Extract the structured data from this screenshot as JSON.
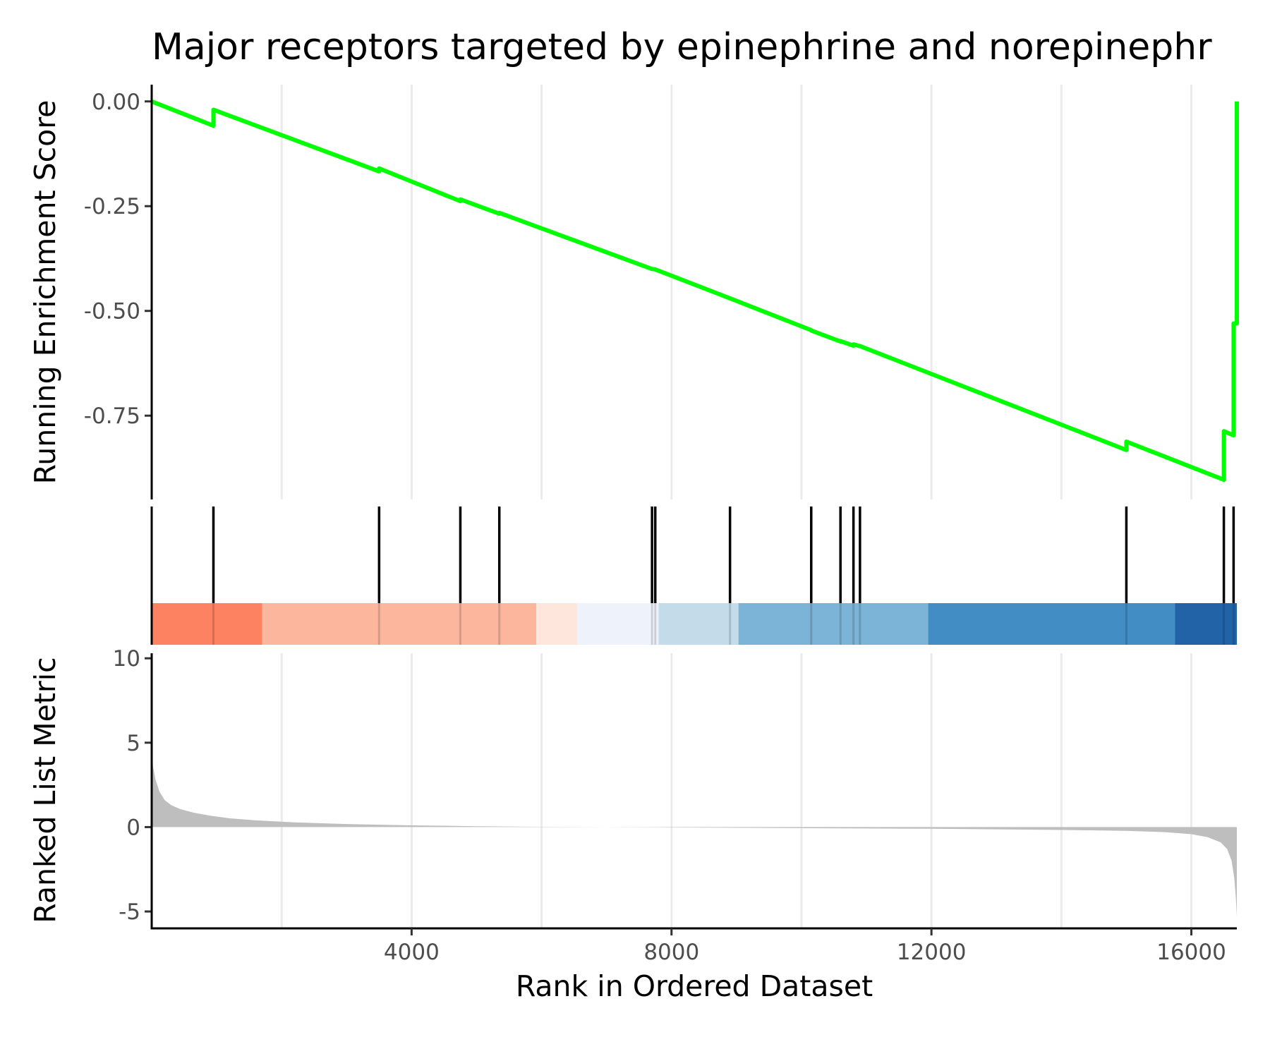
{
  "chart_data": {
    "type": "line",
    "title": "Major receptors targeted by epinephrine and norepinephr",
    "xlabel": "Rank in Ordered Dataset",
    "xlim": [
      0,
      16700
    ],
    "x_ticks": [
      {
        "value": 4000,
        "label": "4000"
      },
      {
        "value": 8000,
        "label": "8000"
      },
      {
        "value": 12000,
        "label": "12000"
      },
      {
        "value": 16000,
        "label": "16000"
      }
    ],
    "x_gridlines": [
      2000,
      4000,
      6000,
      8000,
      10000,
      12000,
      14000,
      16000
    ],
    "grid": true,
    "enrichment": {
      "ylabel": "Running Enrichment Score",
      "ylim": [
        -0.95,
        0.04
      ],
      "color": "#00ff00",
      "y_ticks": [
        {
          "value": 0,
          "label": "0.00"
        },
        {
          "value": -0.25,
          "label": "-0.25"
        },
        {
          "value": -0.5,
          "label": "-0.50"
        },
        {
          "value": -0.75,
          "label": "-0.75"
        }
      ],
      "points": [
        [
          0,
          0
        ],
        [
          950,
          -0.058
        ],
        [
          950,
          -0.02
        ],
        [
          3500,
          -0.167
        ],
        [
          3500,
          -0.16
        ],
        [
          4750,
          -0.238
        ],
        [
          4750,
          -0.234
        ],
        [
          5350,
          -0.268
        ],
        [
          5350,
          -0.266
        ],
        [
          7700,
          -0.4
        ],
        [
          7750,
          -0.401
        ],
        [
          8900,
          -0.47
        ],
        [
          10150,
          -0.546
        ],
        [
          10150,
          -0.547
        ],
        [
          10600,
          -0.573
        ],
        [
          10600,
          -0.572
        ],
        [
          10800,
          -0.583
        ],
        [
          10800,
          -0.58
        ],
        [
          10900,
          -0.584
        ],
        [
          15000,
          -0.832
        ],
        [
          15000,
          -0.812
        ],
        [
          16500,
          -0.903
        ],
        [
          16500,
          -0.787
        ],
        [
          16650,
          -0.797
        ],
        [
          16650,
          -0.53
        ],
        [
          16700,
          -0.53
        ],
        [
          16700,
          0
        ]
      ]
    },
    "hits": {
      "positions": [
        950,
        3500,
        4750,
        5350,
        7700,
        7750,
        8900,
        10150,
        10600,
        10800,
        10900,
        15000,
        16500,
        16650
      ],
      "color": "#000000"
    },
    "color_band": {
      "segments": [
        {
          "start": 0,
          "end": 1700,
          "color": "#fc8262"
        },
        {
          "start": 1700,
          "end": 5920,
          "color": "#fbb69d"
        },
        {
          "start": 5920,
          "end": 6550,
          "color": "#fee6dc"
        },
        {
          "start": 6550,
          "end": 7800,
          "color": "#eef2fb"
        },
        {
          "start": 7800,
          "end": 9030,
          "color": "#c4dbea"
        },
        {
          "start": 9030,
          "end": 11950,
          "color": "#7bb4d7"
        },
        {
          "start": 11950,
          "end": 15750,
          "color": "#428dc3"
        },
        {
          "start": 15750,
          "end": 16700,
          "color": "#2163a6"
        }
      ]
    },
    "ranked_metric": {
      "ylabel": "Ranked List Metric",
      "ylim": [
        -6,
        10.3
      ],
      "color": "#bebebe",
      "y_ticks": [
        {
          "value": 10,
          "label": "10"
        },
        {
          "value": 5,
          "label": "5"
        },
        {
          "value": 0,
          "label": "0"
        },
        {
          "value": -5,
          "label": "-5"
        }
      ],
      "points": [
        [
          0,
          4.9
        ],
        [
          20,
          3.6
        ],
        [
          60,
          2.8
        ],
        [
          120,
          2.1
        ],
        [
          200,
          1.6
        ],
        [
          300,
          1.3
        ],
        [
          450,
          1.05
        ],
        [
          650,
          0.85
        ],
        [
          900,
          0.68
        ],
        [
          1200,
          0.52
        ],
        [
          1600,
          0.4
        ],
        [
          2200,
          0.28
        ],
        [
          3000,
          0.18
        ],
        [
          4000,
          0.1
        ],
        [
          5000,
          0.05
        ],
        [
          6000,
          0.02
        ],
        [
          7000,
          0.0
        ],
        [
          8000,
          -0.02
        ],
        [
          9000,
          -0.04
        ],
        [
          10000,
          -0.06
        ],
        [
          11000,
          -0.08
        ],
        [
          12000,
          -0.1
        ],
        [
          13000,
          -0.13
        ],
        [
          14000,
          -0.17
        ],
        [
          15000,
          -0.22
        ],
        [
          15600,
          -0.3
        ],
        [
          16000,
          -0.42
        ],
        [
          16250,
          -0.6
        ],
        [
          16450,
          -0.9
        ],
        [
          16550,
          -1.3
        ],
        [
          16620,
          -2.0
        ],
        [
          16660,
          -3.0
        ],
        [
          16685,
          -4.2
        ],
        [
          16700,
          -5.3
        ]
      ]
    }
  }
}
